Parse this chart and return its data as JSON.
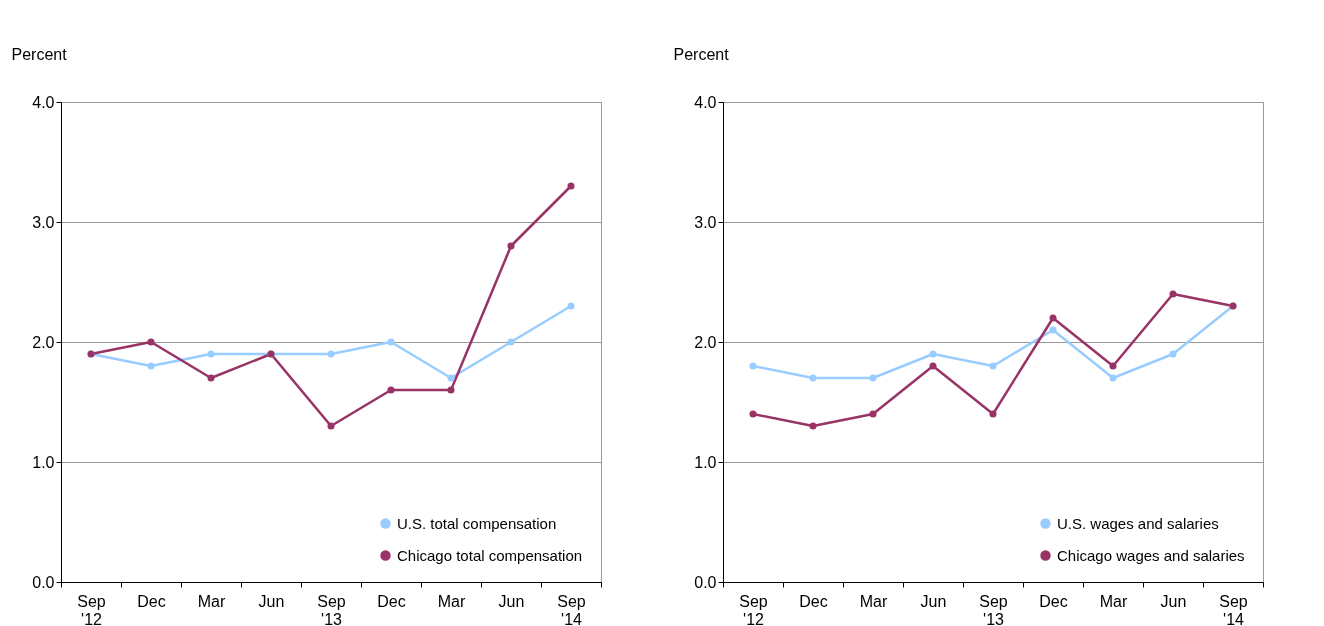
{
  "chart_data": [
    {
      "type": "line",
      "ylabel": "Percent",
      "categories": [
        "Sep '12",
        "Dec",
        "Mar",
        "Jun",
        "Sep '13",
        "Dec",
        "Mar",
        "Jun",
        "Sep '14"
      ],
      "ylim": [
        0,
        4
      ],
      "yticks": [
        {
          "value": 0,
          "label": "0.0"
        },
        {
          "value": 1,
          "label": "1.0"
        },
        {
          "value": 2,
          "label": "2.0"
        },
        {
          "value": 3,
          "label": "3.0"
        },
        {
          "value": 4,
          "label": "4.0"
        }
      ],
      "grid": "y",
      "legend": "bottom right",
      "marker": "circle",
      "line_style": "solid",
      "series": [
        {
          "name": "U.S. total compensation",
          "color": "#99ccff",
          "values": [
            1.9,
            1.8,
            1.9,
            1.9,
            1.9,
            2.0,
            1.7,
            2.0,
            2.3
          ]
        },
        {
          "name": "Chicago total compensation",
          "color": "#993366",
          "values": [
            1.9,
            2.0,
            1.7,
            1.9,
            1.3,
            1.6,
            1.6,
            2.8,
            3.3
          ]
        }
      ]
    },
    {
      "type": "line",
      "ylabel": "Percent",
      "categories": [
        "Sep '12",
        "Dec",
        "Mar",
        "Jun",
        "Sep '13",
        "Dec",
        "Mar",
        "Jun",
        "Sep '14"
      ],
      "ylim": [
        0,
        4
      ],
      "yticks": [
        {
          "value": 0,
          "label": "0.0"
        },
        {
          "value": 1,
          "label": "1.0"
        },
        {
          "value": 2,
          "label": "2.0"
        },
        {
          "value": 3,
          "label": "3.0"
        },
        {
          "value": 4,
          "label": "4.0"
        }
      ],
      "grid": "y",
      "legend": "bottom right",
      "marker": "circle",
      "line_style": "solid",
      "series": [
        {
          "name": "U.S. wages and salaries",
          "color": "#99ccff",
          "values": [
            1.8,
            1.7,
            1.7,
            1.9,
            1.8,
            2.1,
            1.7,
            1.9,
            2.3
          ]
        },
        {
          "name": "Chicago wages and salaries",
          "color": "#993366",
          "values": [
            1.4,
            1.3,
            1.4,
            1.8,
            1.4,
            2.2,
            1.8,
            2.4,
            2.3
          ]
        }
      ]
    }
  ]
}
